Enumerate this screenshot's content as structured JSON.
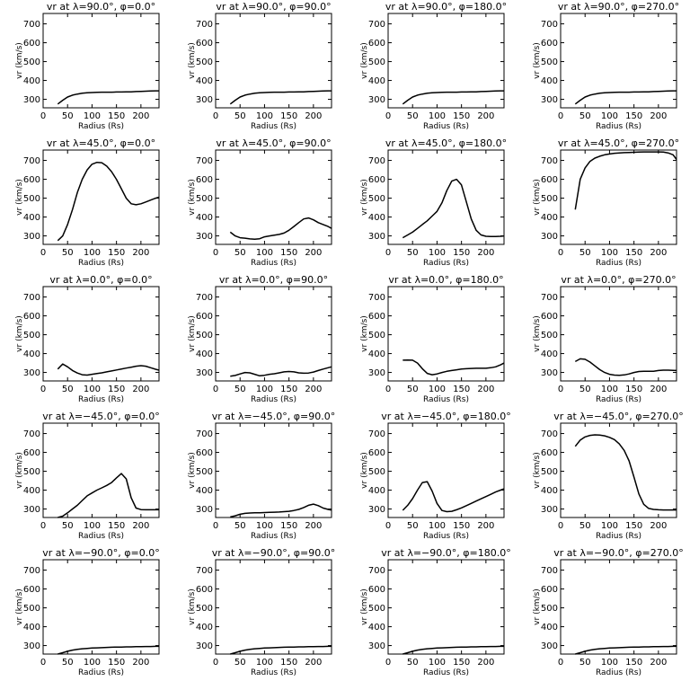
{
  "chart_data": [
    {
      "type": "line",
      "title": "vr at λ=90.0°, φ=0.0°",
      "xlabel": "Radius (Rs)",
      "ylabel": "vr (km/s)",
      "xlim": [
        0,
        237
      ],
      "ylim": [
        255,
        755
      ],
      "x": [
        30,
        40,
        50,
        60,
        70,
        80,
        90,
        100,
        110,
        120,
        130,
        140,
        150,
        160,
        170,
        180,
        190,
        200,
        210,
        220,
        230,
        237
      ],
      "values": [
        275,
        295,
        312,
        322,
        328,
        332,
        335,
        336,
        337,
        338,
        338,
        338,
        339,
        339,
        340,
        340,
        341,
        342,
        343,
        344,
        345,
        345
      ]
    },
    {
      "type": "line",
      "title": "vr at λ=90.0°, φ=90.0°",
      "xlabel": "Radius (Rs)",
      "ylabel": "vr (km/s)",
      "xlim": [
        0,
        237
      ],
      "ylim": [
        255,
        755
      ],
      "x": [
        30,
        40,
        50,
        60,
        70,
        80,
        90,
        100,
        110,
        120,
        130,
        140,
        150,
        160,
        170,
        180,
        190,
        200,
        210,
        220,
        230,
        237
      ],
      "values": [
        275,
        295,
        312,
        322,
        328,
        332,
        335,
        336,
        337,
        338,
        338,
        338,
        339,
        339,
        340,
        340,
        341,
        342,
        343,
        344,
        345,
        345
      ]
    },
    {
      "type": "line",
      "title": "vr at λ=90.0°, φ=180.0°",
      "xlabel": "Radius (Rs)",
      "ylabel": "vr (km/s)",
      "xlim": [
        0,
        237
      ],
      "ylim": [
        255,
        755
      ],
      "x": [
        30,
        40,
        50,
        60,
        70,
        80,
        90,
        100,
        110,
        120,
        130,
        140,
        150,
        160,
        170,
        180,
        190,
        200,
        210,
        220,
        230,
        237
      ],
      "values": [
        275,
        295,
        312,
        322,
        328,
        332,
        335,
        336,
        337,
        338,
        338,
        338,
        339,
        339,
        340,
        340,
        341,
        342,
        343,
        344,
        345,
        345
      ]
    },
    {
      "type": "line",
      "title": "vr at λ=90.0°, φ=270.0°",
      "xlabel": "Radius (Rs)",
      "ylabel": "vr (km/s)",
      "xlim": [
        0,
        237
      ],
      "ylim": [
        255,
        755
      ],
      "x": [
        30,
        40,
        50,
        60,
        70,
        80,
        90,
        100,
        110,
        120,
        130,
        140,
        150,
        160,
        170,
        180,
        190,
        200,
        210,
        220,
        230,
        237
      ],
      "values": [
        275,
        295,
        312,
        322,
        328,
        332,
        335,
        336,
        337,
        338,
        338,
        338,
        339,
        339,
        340,
        340,
        341,
        342,
        343,
        344,
        345,
        345
      ]
    },
    {
      "type": "line",
      "title": "vr at λ=45.0°, φ=0.0°",
      "xlabel": "Radius (Rs)",
      "ylabel": "vr (km/s)",
      "xlim": [
        0,
        237
      ],
      "ylim": [
        255,
        755
      ],
      "x": [
        30,
        40,
        50,
        60,
        70,
        80,
        90,
        100,
        110,
        120,
        130,
        140,
        150,
        160,
        170,
        180,
        190,
        200,
        210,
        220,
        230,
        237
      ],
      "values": [
        275,
        300,
        360,
        440,
        530,
        600,
        650,
        680,
        690,
        688,
        670,
        640,
        600,
        550,
        500,
        470,
        465,
        470,
        480,
        490,
        500,
        505
      ]
    },
    {
      "type": "line",
      "title": "vr at λ=45.0°, φ=90.0°",
      "xlabel": "Radius (Rs)",
      "ylabel": "vr (km/s)",
      "xlim": [
        0,
        237
      ],
      "ylim": [
        255,
        755
      ],
      "x": [
        30,
        40,
        50,
        60,
        70,
        80,
        90,
        100,
        110,
        120,
        130,
        140,
        150,
        160,
        170,
        180,
        190,
        200,
        210,
        220,
        230,
        237
      ],
      "values": [
        320,
        300,
        290,
        288,
        284,
        282,
        285,
        295,
        300,
        304,
        308,
        315,
        330,
        350,
        370,
        390,
        395,
        385,
        370,
        360,
        350,
        340
      ]
    },
    {
      "type": "line",
      "title": "vr at λ=45.0°, φ=180.0°",
      "xlabel": "Radius (Rs)",
      "ylabel": "vr (km/s)",
      "xlim": [
        0,
        237
      ],
      "ylim": [
        255,
        755
      ],
      "x": [
        30,
        40,
        50,
        60,
        70,
        80,
        90,
        100,
        110,
        120,
        130,
        140,
        150,
        160,
        170,
        180,
        190,
        200,
        210,
        220,
        230,
        237
      ],
      "values": [
        290,
        305,
        320,
        340,
        360,
        380,
        405,
        430,
        475,
        540,
        590,
        600,
        570,
        480,
        390,
        330,
        305,
        298,
        297,
        297,
        298,
        300
      ]
    },
    {
      "type": "line",
      "title": "vr at λ=45.0°, φ=270.0°",
      "xlabel": "Radius (Rs)",
      "ylabel": "vr (km/s)",
      "xlim": [
        0,
        237
      ],
      "ylim": [
        255,
        755
      ],
      "x": [
        30,
        40,
        50,
        60,
        70,
        80,
        90,
        100,
        110,
        120,
        130,
        140,
        150,
        160,
        170,
        180,
        190,
        200,
        210,
        220,
        230,
        237
      ],
      "values": [
        440,
        600,
        660,
        695,
        712,
        722,
        730,
        734,
        738,
        740,
        741,
        742,
        743,
        744,
        745,
        745,
        745,
        745,
        744,
        740,
        730,
        705
      ]
    },
    {
      "type": "line",
      "title": "vr at λ=0.0°, φ=0.0°",
      "xlabel": "Radius (Rs)",
      "ylabel": "vr (km/s)",
      "xlim": [
        0,
        237
      ],
      "ylim": [
        255,
        755
      ],
      "x": [
        30,
        40,
        50,
        60,
        70,
        80,
        90,
        100,
        110,
        120,
        130,
        140,
        150,
        160,
        170,
        180,
        190,
        200,
        210,
        220,
        230,
        237
      ],
      "values": [
        318,
        345,
        330,
        310,
        297,
        288,
        286,
        290,
        294,
        298,
        303,
        308,
        313,
        318,
        323,
        328,
        333,
        336,
        333,
        325,
        317,
        312
      ]
    },
    {
      "type": "line",
      "title": "vr at λ=0.0°, φ=90.0°",
      "xlabel": "Radius (Rs)",
      "ylabel": "vr (km/s)",
      "xlim": [
        0,
        237
      ],
      "ylim": [
        255,
        755
      ],
      "x": [
        30,
        40,
        50,
        60,
        70,
        80,
        90,
        100,
        110,
        120,
        130,
        140,
        150,
        160,
        170,
        180,
        190,
        200,
        210,
        220,
        230,
        237
      ],
      "values": [
        280,
        284,
        292,
        300,
        298,
        290,
        282,
        285,
        290,
        293,
        298,
        303,
        305,
        303,
        298,
        296,
        297,
        302,
        310,
        318,
        325,
        330
      ]
    },
    {
      "type": "line",
      "title": "vr at λ=0.0°, φ=180.0°",
      "xlabel": "Radius (Rs)",
      "ylabel": "vr (km/s)",
      "xlim": [
        0,
        237
      ],
      "ylim": [
        255,
        755
      ],
      "x": [
        30,
        40,
        50,
        60,
        70,
        80,
        90,
        100,
        110,
        120,
        130,
        140,
        150,
        160,
        170,
        180,
        190,
        200,
        210,
        220,
        230,
        237
      ],
      "values": [
        365,
        366,
        365,
        350,
        320,
        295,
        288,
        292,
        300,
        306,
        310,
        314,
        318,
        320,
        321,
        322,
        322,
        322,
        325,
        330,
        340,
        350
      ]
    },
    {
      "type": "line",
      "title": "vr at λ=0.0°, φ=270.0°",
      "xlabel": "Radius (Rs)",
      "ylabel": "vr (km/s)",
      "xlim": [
        0,
        237
      ],
      "ylim": [
        255,
        755
      ],
      "x": [
        30,
        40,
        50,
        60,
        70,
        80,
        90,
        100,
        110,
        120,
        130,
        140,
        150,
        160,
        170,
        180,
        190,
        200,
        210,
        220,
        230,
        237
      ],
      "values": [
        358,
        372,
        370,
        355,
        335,
        315,
        300,
        290,
        286,
        285,
        287,
        292,
        300,
        305,
        306,
        306,
        306,
        310,
        312,
        312,
        311,
        310
      ]
    },
    {
      "type": "line",
      "title": "vr at λ=−45.0°, φ=0.0°",
      "xlabel": "Radius (Rs)",
      "ylabel": "vr (km/s)",
      "xlim": [
        0,
        237
      ],
      "ylim": [
        255,
        755
      ],
      "x": [
        30,
        40,
        50,
        60,
        70,
        80,
        90,
        100,
        110,
        120,
        130,
        140,
        150,
        160,
        170,
        180,
        190,
        200,
        210,
        220,
        230,
        237
      ],
      "values": [
        255,
        262,
        280,
        300,
        320,
        345,
        370,
        385,
        400,
        412,
        425,
        440,
        465,
        488,
        460,
        360,
        305,
        297,
        296,
        296,
        296,
        296
      ]
    },
    {
      "type": "line",
      "title": "vr at λ=−45.0°, φ=90.0°",
      "xlabel": "Radius (Rs)",
      "ylabel": "vr (km/s)",
      "xlim": [
        0,
        237
      ],
      "ylim": [
        255,
        755
      ],
      "x": [
        30,
        40,
        50,
        60,
        70,
        80,
        90,
        100,
        110,
        120,
        130,
        140,
        150,
        160,
        170,
        180,
        190,
        200,
        210,
        220,
        230,
        237
      ],
      "values": [
        258,
        264,
        272,
        277,
        279,
        280,
        280,
        281,
        282,
        283,
        284,
        286,
        288,
        292,
        298,
        308,
        320,
        326,
        318,
        305,
        298,
        294
      ]
    },
    {
      "type": "line",
      "title": "vr at λ=−45.0°, φ=180.0°",
      "xlabel": "Radius (Rs)",
      "ylabel": "vr (km/s)",
      "xlim": [
        0,
        237
      ],
      "ylim": [
        255,
        755
      ],
      "x": [
        30,
        40,
        50,
        60,
        70,
        80,
        90,
        100,
        110,
        120,
        130,
        140,
        150,
        160,
        170,
        180,
        190,
        200,
        210,
        220,
        230,
        237
      ],
      "values": [
        293,
        320,
        355,
        400,
        440,
        445,
        395,
        330,
        292,
        286,
        288,
        296,
        306,
        318,
        330,
        342,
        354,
        366,
        378,
        390,
        400,
        407
      ]
    },
    {
      "type": "line",
      "title": "vr at λ=−45.0°, φ=270.0°",
      "xlabel": "Radius (Rs)",
      "ylabel": "vr (km/s)",
      "xlim": [
        0,
        237
      ],
      "ylim": [
        255,
        755
      ],
      "x": [
        30,
        40,
        50,
        60,
        70,
        80,
        90,
        100,
        110,
        120,
        130,
        140,
        150,
        160,
        170,
        180,
        190,
        200,
        210,
        220,
        230,
        237
      ],
      "values": [
        632,
        665,
        682,
        690,
        693,
        692,
        688,
        680,
        668,
        645,
        610,
        555,
        470,
        380,
        325,
        303,
        298,
        296,
        295,
        295,
        295,
        295
      ]
    },
    {
      "type": "line",
      "title": "vr at λ=−90.0°, φ=0.0°",
      "xlabel": "Radius (Rs)",
      "ylabel": "vr (km/s)",
      "xlim": [
        0,
        237
      ],
      "ylim": [
        255,
        755
      ],
      "x": [
        30,
        40,
        50,
        60,
        70,
        80,
        90,
        100,
        110,
        120,
        130,
        140,
        150,
        160,
        170,
        180,
        190,
        200,
        210,
        220,
        230,
        237
      ],
      "values": [
        255,
        262,
        270,
        276,
        280,
        283,
        285,
        287,
        288,
        289,
        290,
        291,
        292,
        292,
        293,
        293,
        294,
        294,
        295,
        295,
        296,
        296
      ]
    },
    {
      "type": "line",
      "title": "vr at λ=−90.0°, φ=90.0°",
      "xlabel": "Radius (Rs)",
      "ylabel": "vr (km/s)",
      "xlim": [
        0,
        237
      ],
      "ylim": [
        255,
        755
      ],
      "x": [
        30,
        40,
        50,
        60,
        70,
        80,
        90,
        100,
        110,
        120,
        130,
        140,
        150,
        160,
        170,
        180,
        190,
        200,
        210,
        220,
        230,
        237
      ],
      "values": [
        255,
        262,
        270,
        276,
        280,
        283,
        285,
        287,
        288,
        289,
        290,
        291,
        292,
        292,
        293,
        293,
        294,
        294,
        295,
        295,
        296,
        296
      ]
    },
    {
      "type": "line",
      "title": "vr at λ=−90.0°, φ=180.0°",
      "xlabel": "Radius (Rs)",
      "ylabel": "vr (km/s)",
      "xlim": [
        0,
        237
      ],
      "ylim": [
        255,
        755
      ],
      "x": [
        30,
        40,
        50,
        60,
        70,
        80,
        90,
        100,
        110,
        120,
        130,
        140,
        150,
        160,
        170,
        180,
        190,
        200,
        210,
        220,
        230,
        237
      ],
      "values": [
        255,
        262,
        270,
        276,
        280,
        283,
        285,
        287,
        288,
        289,
        290,
        291,
        292,
        292,
        293,
        293,
        294,
        294,
        295,
        295,
        296,
        296
      ]
    },
    {
      "type": "line",
      "title": "vr at λ=−90.0°, φ=270.0°",
      "xlabel": "Radius (Rs)",
      "ylabel": "vr (km/s)",
      "xlim": [
        0,
        237
      ],
      "ylim": [
        255,
        755
      ],
      "x": [
        30,
        40,
        50,
        60,
        70,
        80,
        90,
        100,
        110,
        120,
        130,
        140,
        150,
        160,
        170,
        180,
        190,
        200,
        210,
        220,
        230,
        237
      ],
      "values": [
        255,
        262,
        270,
        276,
        280,
        283,
        285,
        287,
        288,
        289,
        290,
        291,
        292,
        292,
        293,
        293,
        294,
        294,
        295,
        295,
        296,
        296
      ]
    }
  ],
  "axes": {
    "x_ticks": [
      0,
      50,
      100,
      150,
      200
    ],
    "y_ticks": [
      300,
      400,
      500,
      600,
      700
    ]
  }
}
